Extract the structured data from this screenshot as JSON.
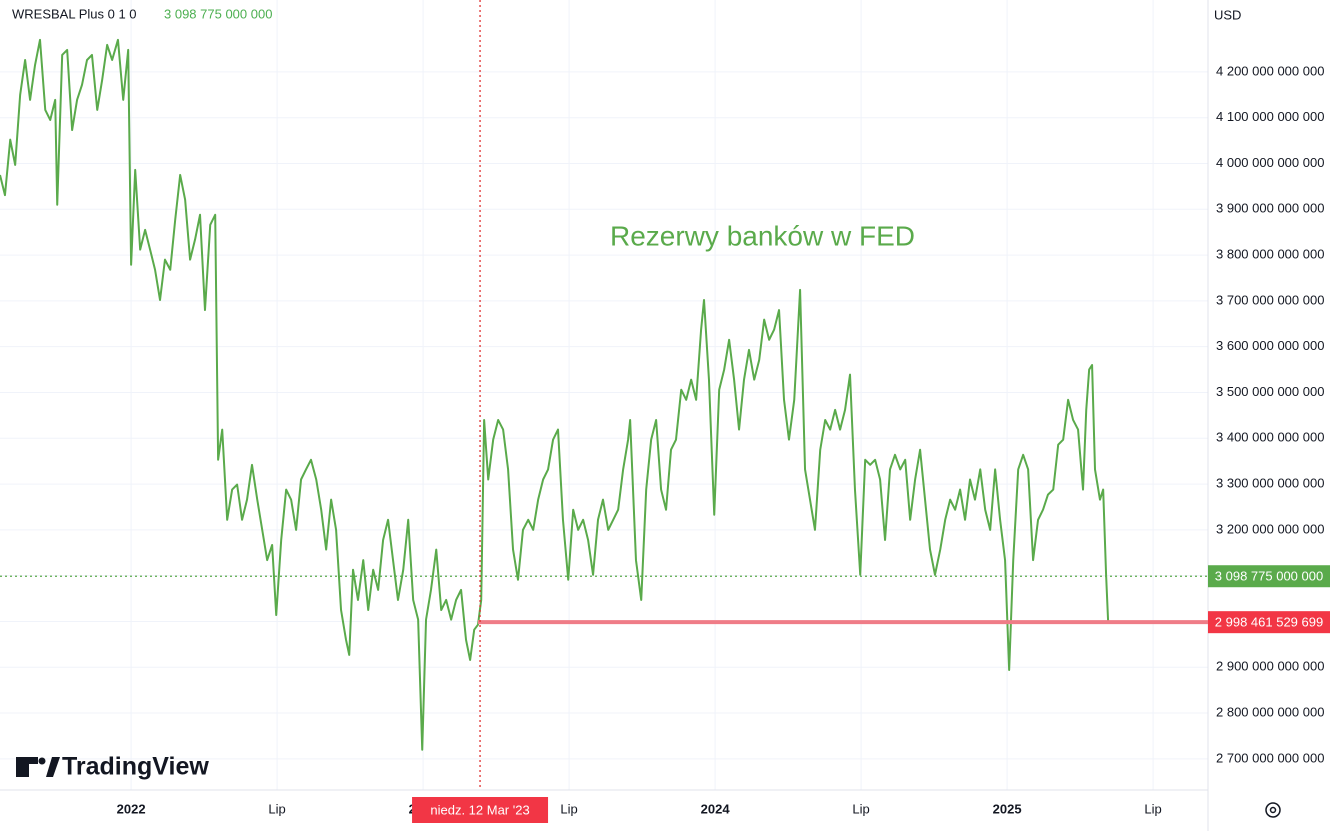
{
  "chart_data": {
    "type": "line",
    "symbol": "WRESBAL Plus 0 1 0",
    "last_value": {
      "value": 3098775000000,
      "label": "3 098 775 000 000"
    },
    "currency": "USD",
    "annotation": "Rezerwy banków w FED",
    "logo": "TradingView",
    "crosshair": {
      "x": 2023.195,
      "label": "niedz. 12 Mar '23"
    },
    "horizontal_line": {
      "value": 2998461529699,
      "label": "2 998 461 529 699",
      "x_start": 2023.188,
      "color": "#ef7c87"
    },
    "grid": true,
    "xlim": [
      2021.551,
      2025.688
    ],
    "ylim": [
      2632000000000,
      4357000000000
    ],
    "xticks": [
      2022,
      {
        "value": 2022.5,
        "label": "Lip"
      },
      2023,
      {
        "value": 2023.5,
        "label": "Lip"
      },
      2024,
      {
        "value": 2024.5,
        "label": "Lip"
      },
      2025,
      {
        "value": 2025.5,
        "label": "Lip"
      }
    ],
    "yticks": [
      {
        "value": 2700000000000,
        "label": "2 700 000 000 000"
      },
      {
        "value": 2800000000000,
        "label": "2 800 000 000 000"
      },
      {
        "value": 2900000000000,
        "label": "2 900 000 000 000"
      },
      {
        "value": 3000000000000,
        "label": "3 000 000 000 000"
      },
      {
        "value": 3100000000000,
        "label": "3 100 000 000 000"
      },
      {
        "value": 3200000000000,
        "label": "3 200 000 000 000"
      },
      {
        "value": 3300000000000,
        "label": "3 300 000 000 000"
      },
      {
        "value": 3400000000000,
        "label": "3 400 000 000 000"
      },
      {
        "value": 3500000000000,
        "label": "3 500 000 000 000"
      },
      {
        "value": 3600000000000,
        "label": "3 600 000 000 000"
      },
      {
        "value": 3700000000000,
        "label": "3 700 000 000 000"
      },
      {
        "value": 3800000000000,
        "label": "3 800 000 000 000"
      },
      {
        "value": 3900000000000,
        "label": "3 900 000 000 000"
      },
      {
        "value": 4000000000000,
        "label": "4 000 000 000 000"
      },
      {
        "value": 4100000000000,
        "label": "4 100 000 000 000"
      },
      {
        "value": 4200000000000,
        "label": "4 200 000 000 000"
      }
    ],
    "x": [
      2021.551,
      2021.568,
      2021.586,
      2021.603,
      2021.62,
      2021.637,
      2021.654,
      2021.671,
      2021.688,
      2021.706,
      2021.723,
      2021.74,
      2021.747,
      2021.764,
      2021.781,
      2021.798,
      2021.815,
      2021.832,
      2021.849,
      2021.866,
      2021.884,
      2021.901,
      2021.918,
      2021.935,
      2021.955,
      2021.973,
      2021.99,
      2022.0,
      2022.014,
      2022.031,
      2022.048,
      2022.065,
      2022.082,
      2022.099,
      2022.116,
      2022.134,
      2022.151,
      2022.168,
      2022.185,
      2022.202,
      2022.219,
      2022.236,
      2022.253,
      2022.271,
      2022.288,
      2022.298,
      2022.312,
      2022.329,
      2022.346,
      2022.363,
      2022.38,
      2022.397,
      2022.414,
      2022.432,
      2022.449,
      2022.466,
      2022.483,
      2022.497,
      2022.514,
      2022.531,
      2022.548,
      2022.565,
      2022.582,
      2022.599,
      2022.616,
      2022.634,
      2022.651,
      2022.668,
      2022.685,
      2022.702,
      2022.719,
      2022.736,
      2022.747,
      2022.76,
      2022.777,
      2022.795,
      2022.812,
      2022.829,
      2022.846,
      2022.863,
      2022.88,
      2022.897,
      2022.914,
      2022.932,
      2022.949,
      2022.966,
      2022.983,
      2022.997,
      2023.01,
      2023.027,
      2023.045,
      2023.062,
      2023.079,
      2023.096,
      2023.113,
      2023.13,
      2023.147,
      2023.161,
      2023.175,
      2023.188,
      2023.199,
      2023.209,
      2023.223,
      2023.24,
      2023.257,
      2023.274,
      2023.291,
      2023.308,
      2023.325,
      2023.342,
      2023.36,
      2023.377,
      2023.394,
      2023.411,
      2023.428,
      2023.445,
      2023.462,
      2023.479,
      2023.497,
      2023.514,
      2023.531,
      2023.548,
      2023.565,
      2023.582,
      2023.599,
      2023.616,
      2023.634,
      2023.651,
      2023.668,
      2023.685,
      2023.702,
      2023.709,
      2023.729,
      2023.747,
      2023.764,
      2023.781,
      2023.798,
      2023.815,
      2023.832,
      2023.849,
      2023.866,
      2023.884,
      2023.901,
      2023.918,
      2023.935,
      2023.952,
      2023.962,
      2023.979,
      2023.997,
      2024.014,
      2024.031,
      2024.048,
      2024.065,
      2024.082,
      2024.099,
      2024.116,
      2024.134,
      2024.151,
      2024.168,
      2024.185,
      2024.202,
      2024.219,
      2024.236,
      2024.253,
      2024.271,
      2024.281,
      2024.291,
      2024.308,
      2024.325,
      2024.342,
      2024.36,
      2024.377,
      2024.394,
      2024.411,
      2024.428,
      2024.445,
      2024.462,
      2024.479,
      2024.497,
      2024.514,
      2024.531,
      2024.548,
      2024.565,
      2024.582,
      2024.599,
      2024.616,
      2024.634,
      2024.651,
      2024.668,
      2024.685,
      2024.702,
      2024.719,
      2024.736,
      2024.753,
      2024.771,
      2024.788,
      2024.805,
      2024.822,
      2024.839,
      2024.856,
      2024.873,
      2024.89,
      2024.908,
      2024.925,
      2024.942,
      2024.959,
      2024.976,
      2024.993,
      2025.007,
      2025.021,
      2025.038,
      2025.055,
      2025.072,
      2025.089,
      2025.106,
      2025.123,
      2025.14,
      2025.158,
      2025.175,
      2025.192,
      2025.209,
      2025.226,
      2025.243,
      2025.26,
      2025.271,
      2025.281,
      2025.291,
      2025.301,
      2025.318,
      2025.329,
      2025.339,
      2025.346
    ],
    "series": [
      {
        "name": "WRESBAL",
        "color": "#5aaa4b",
        "values": [
          3975000000000,
          3931000000000,
          4052000000000,
          3997000000000,
          4150000000000,
          4226000000000,
          4139000000000,
          4215000000000,
          4270000000000,
          4117000000000,
          4095000000000,
          4139000000000,
          3910000000000,
          4237000000000,
          4248000000000,
          4073000000000,
          4139000000000,
          4172000000000,
          4226000000000,
          4237000000000,
          4117000000000,
          4183000000000,
          4259000000000,
          4226000000000,
          4270000000000,
          4139000000000,
          4248000000000,
          3779000000000,
          3986000000000,
          3812000000000,
          3855000000000,
          3812000000000,
          3768000000000,
          3702000000000,
          3790000000000,
          3768000000000,
          3877000000000,
          3975000000000,
          3921000000000,
          3790000000000,
          3834000000000,
          3888000000000,
          3680000000000,
          3866000000000,
          3888000000000,
          3353000000000,
          3419000000000,
          3222000000000,
          3288000000000,
          3299000000000,
          3222000000000,
          3266000000000,
          3342000000000,
          3266000000000,
          3200000000000,
          3134000000000,
          3167000000000,
          3014000000000,
          3178000000000,
          3288000000000,
          3266000000000,
          3200000000000,
          3310000000000,
          3332000000000,
          3353000000000,
          3310000000000,
          3244000000000,
          3157000000000,
          3266000000000,
          3200000000000,
          3025000000000,
          2960000000000,
          2927000000000,
          3113000000000,
          3047000000000,
          3134000000000,
          3025000000000,
          3113000000000,
          3069000000000,
          3178000000000,
          3222000000000,
          3134000000000,
          3047000000000,
          3113000000000,
          3222000000000,
          3047000000000,
          3004000000000,
          2720000000000,
          3004000000000,
          3069000000000,
          3157000000000,
          3025000000000,
          3047000000000,
          3004000000000,
          3047000000000,
          3069000000000,
          2960000000000,
          2916000000000,
          2982000000000,
          2993000000000,
          3047000000000,
          3440000000000,
          3310000000000,
          3397000000000,
          3440000000000,
          3419000000000,
          3332000000000,
          3157000000000,
          3091000000000,
          3200000000000,
          3222000000000,
          3200000000000,
          3266000000000,
          3310000000000,
          3332000000000,
          3397000000000,
          3419000000000,
          3222000000000,
          3091000000000,
          3244000000000,
          3200000000000,
          3222000000000,
          3178000000000,
          3102000000000,
          3222000000000,
          3266000000000,
          3200000000000,
          3222000000000,
          3244000000000,
          3332000000000,
          3397000000000,
          3440000000000,
          3134000000000,
          3047000000000,
          3288000000000,
          3397000000000,
          3440000000000,
          3288000000000,
          3244000000000,
          3375000000000,
          3397000000000,
          3506000000000,
          3484000000000,
          3528000000000,
          3484000000000,
          3637000000000,
          3702000000000,
          3528000000000,
          3233000000000,
          3506000000000,
          3550000000000,
          3615000000000,
          3528000000000,
          3419000000000,
          3528000000000,
          3593000000000,
          3528000000000,
          3571000000000,
          3659000000000,
          3615000000000,
          3637000000000,
          3680000000000,
          3484000000000,
          3397000000000,
          3484000000000,
          3604000000000,
          3724000000000,
          3332000000000,
          3266000000000,
          3200000000000,
          3375000000000,
          3440000000000,
          3419000000000,
          3462000000000,
          3419000000000,
          3462000000000,
          3539000000000,
          3288000000000,
          3102000000000,
          3353000000000,
          3342000000000,
          3353000000000,
          3310000000000,
          3178000000000,
          3332000000000,
          3364000000000,
          3332000000000,
          3353000000000,
          3222000000000,
          3310000000000,
          3375000000000,
          3266000000000,
          3157000000000,
          3102000000000,
          3157000000000,
          3222000000000,
          3266000000000,
          3244000000000,
          3288000000000,
          3222000000000,
          3310000000000,
          3266000000000,
          3332000000000,
          3244000000000,
          3200000000000,
          3332000000000,
          3222000000000,
          3134000000000,
          2894000000000,
          3134000000000,
          3332000000000,
          3364000000000,
          3332000000000,
          3134000000000,
          3222000000000,
          3244000000000,
          3277000000000,
          3288000000000,
          3386000000000,
          3397000000000,
          3484000000000,
          3440000000000,
          3419000000000,
          3288000000000,
          3462000000000,
          3550000000000,
          3560000000000,
          3332000000000,
          3266000000000,
          3288000000000,
          3102000000000,
          2999000000000
        ]
      }
    ]
  }
}
